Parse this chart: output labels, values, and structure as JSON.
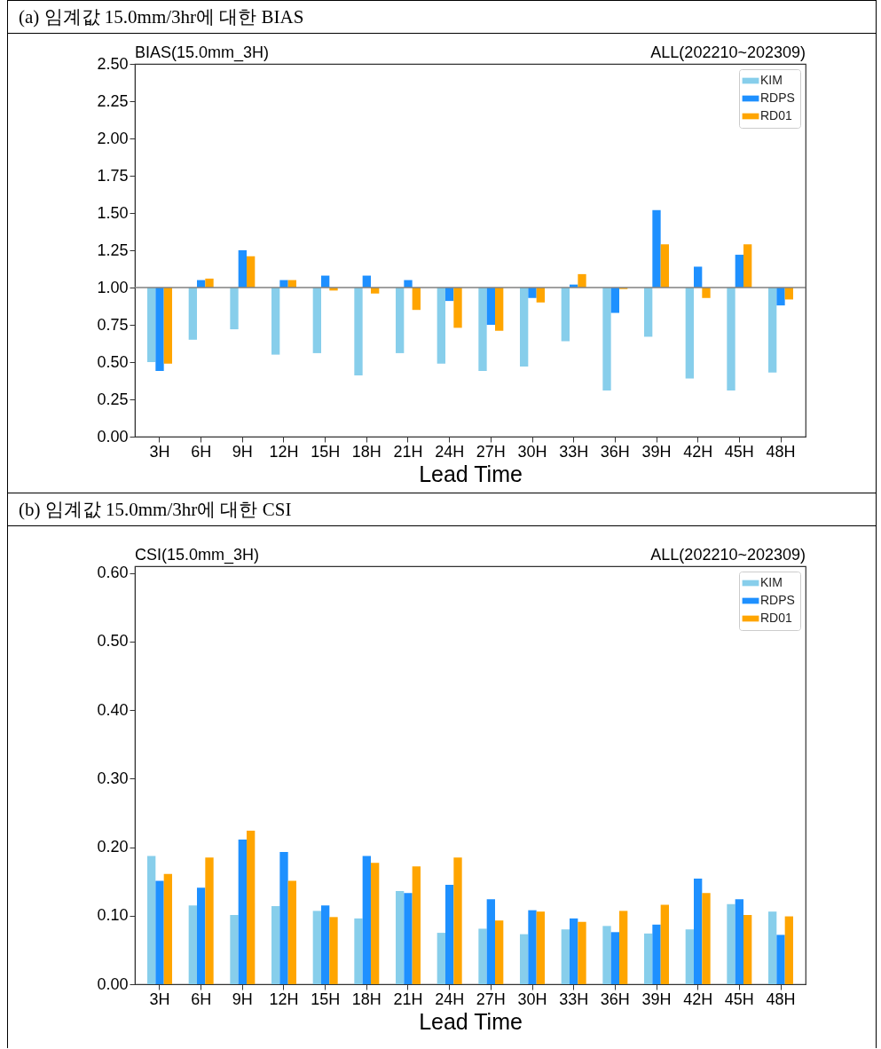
{
  "chart_data": [
    {
      "type": "bar",
      "title": "(a) 임계값 15.0mm/3hr에 대한 BIAS",
      "annotations": [
        "BIAS(15.0mm_3H)",
        "ALL(202210~202309)"
      ],
      "xlabel": "Lead Time",
      "categories": [
        "3H",
        "6H",
        "9H",
        "12H",
        "15H",
        "18H",
        "21H",
        "24H",
        "27H",
        "30H",
        "33H",
        "36H",
        "39H",
        "42H",
        "45H",
        "48H"
      ],
      "series": [
        {
          "name": "KIM",
          "color": "#87ceeb",
          "base": [
            1,
            1,
            1,
            1,
            1,
            1,
            1,
            1,
            1,
            1,
            1,
            1,
            1,
            1,
            1,
            1
          ],
          "values": [
            -0.5,
            -0.35,
            -0.28,
            -0.45,
            -0.44,
            -0.59,
            -0.44,
            -0.51,
            -0.56,
            -0.53,
            -0.36,
            -0.69,
            -0.33,
            -0.61,
            -0.69,
            -0.57
          ]
        },
        {
          "name": "RDPS",
          "color": "#1e90ff",
          "base": [
            1,
            1,
            1,
            1,
            1,
            1,
            1,
            1,
            1,
            1,
            1,
            1,
            1,
            1,
            1,
            1
          ],
          "values": [
            -0.56,
            0.05,
            0.25,
            0.05,
            0.08,
            0.08,
            0.05,
            -0.09,
            -0.25,
            -0.07,
            0.02,
            -0.17,
            0.52,
            0.14,
            0.22,
            -0.12
          ]
        },
        {
          "name": "RD01",
          "color": "#ffa500",
          "base": [
            1,
            1,
            1,
            1,
            1,
            1,
            1,
            1,
            1,
            1,
            1,
            1,
            1,
            1,
            1,
            1
          ],
          "values": [
            -0.51,
            0.06,
            0.21,
            0.05,
            -0.02,
            -0.04,
            -0.15,
            -0.27,
            -0.29,
            -0.1,
            0.09,
            -0.01,
            0.29,
            -0.07,
            0.29,
            -0.08
          ]
        }
      ],
      "ref_lines": [
        {
          "axis": "y",
          "value": 1,
          "color": "#808080"
        }
      ],
      "ylim": [
        0,
        2.5
      ],
      "yticks": [
        {
          "value": 0,
          "label": "0.00"
        },
        {
          "value": 0.25,
          "label": "0.25"
        },
        {
          "value": 0.5,
          "label": "0.50"
        },
        {
          "value": 0.75,
          "label": "0.75"
        },
        {
          "value": 1,
          "label": "1.00"
        },
        {
          "value": 1.25,
          "label": "1.25"
        },
        {
          "value": 1.5,
          "label": "1.50"
        },
        {
          "value": 1.75,
          "label": "1.75"
        },
        {
          "value": 2,
          "label": "2.00"
        },
        {
          "value": 2.25,
          "label": "2.25"
        },
        {
          "value": 2.5,
          "label": "2.50"
        }
      ],
      "legend": "top right"
    },
    {
      "type": "bar",
      "title": "(b) 임계값 15.0mm/3hr에 대한 CSI",
      "annotations": [
        "CSI(15.0mm_3H)",
        "ALL(202210~202309)"
      ],
      "xlabel": "Lead Time",
      "categories": [
        "3H",
        "6H",
        "9H",
        "12H",
        "15H",
        "18H",
        "21H",
        "24H",
        "27H",
        "30H",
        "33H",
        "36H",
        "39H",
        "42H",
        "45H",
        "48H"
      ],
      "series": [
        {
          "name": "KIM",
          "color": "#87ceeb",
          "values": [
            0.187,
            0.115,
            0.101,
            0.114,
            0.107,
            0.096,
            0.136,
            0.075,
            0.081,
            0.073,
            0.08,
            0.085,
            0.074,
            0.08,
            0.117,
            0.106
          ]
        },
        {
          "name": "RDPS",
          "color": "#1e90ff",
          "values": [
            0.151,
            0.141,
            0.211,
            0.193,
            0.115,
            0.187,
            0.133,
            0.145,
            0.124,
            0.108,
            0.096,
            0.076,
            0.087,
            0.154,
            0.124,
            0.072
          ]
        },
        {
          "name": "RD01",
          "color": "#ffa500",
          "values": [
            0.161,
            0.185,
            0.224,
            0.151,
            0.098,
            0.177,
            0.172,
            0.185,
            0.093,
            0.106,
            0.091,
            0.107,
            0.116,
            0.133,
            0.101,
            0.099
          ]
        }
      ],
      "ylim": [
        0,
        0.61
      ],
      "yticks": [
        {
          "value": 0,
          "label": "0.00"
        },
        {
          "value": 0.1,
          "label": "0.10"
        },
        {
          "value": 0.2,
          "label": "0.20"
        },
        {
          "value": 0.3,
          "label": "0.30"
        },
        {
          "value": 0.4,
          "label": "0.40"
        },
        {
          "value": 0.5,
          "label": "0.50"
        },
        {
          "value": 0.6,
          "label": "0.60"
        }
      ],
      "legend": "top right"
    }
  ]
}
